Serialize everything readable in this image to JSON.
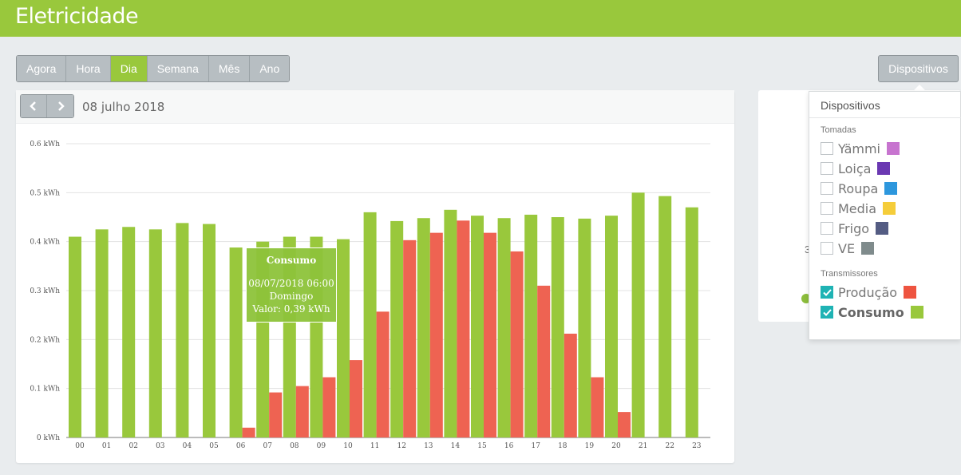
{
  "header": {
    "title": "Eletricidade"
  },
  "tabs": [
    {
      "label": "Agora",
      "active": false
    },
    {
      "label": "Hora",
      "active": false
    },
    {
      "label": "Dia",
      "active": true
    },
    {
      "label": "Semana",
      "active": false
    },
    {
      "label": "Mês",
      "active": false
    },
    {
      "label": "Ano",
      "active": false
    }
  ],
  "devices_button": {
    "label": "Dispositivos"
  },
  "panel": {
    "date": "08 julho 2018",
    "prev_icon": "chevron-left-icon",
    "next_icon": "chevron-right-icon"
  },
  "colors": {
    "accent": "#99c83c",
    "consumo": "#99c83c",
    "producao": "#ee6352",
    "checkbox": "#1fb3b4"
  },
  "chart_data": {
    "type": "bar",
    "categories": [
      "00",
      "01",
      "02",
      "03",
      "04",
      "05",
      "06",
      "07",
      "08",
      "09",
      "10",
      "11",
      "12",
      "13",
      "14",
      "15",
      "16",
      "17",
      "18",
      "19",
      "20",
      "21",
      "22",
      "23"
    ],
    "series": [
      {
        "name": "Consumo",
        "color": "#99c83c",
        "values": [
          0.41,
          0.425,
          0.43,
          0.425,
          0.438,
          0.436,
          0.388,
          0.4,
          0.41,
          0.41,
          0.405,
          0.46,
          0.442,
          0.448,
          0.465,
          0.453,
          0.448,
          0.455,
          0.45,
          0.447,
          0.453,
          0.5,
          0.493,
          0.47
        ]
      },
      {
        "name": "Produção",
        "color": "#ee6352",
        "values": [
          0,
          0,
          0,
          0,
          0,
          0,
          0.02,
          0.092,
          0.105,
          0.123,
          0.158,
          0.257,
          0.403,
          0.418,
          0.443,
          0.418,
          0.38,
          0.31,
          0.212,
          0.123,
          0.052,
          0,
          0,
          0
        ]
      }
    ],
    "yticks": [
      "0 kWh",
      "0.1 kWh",
      "0.2 kWh",
      "0.3 kWh",
      "0.4 kWh",
      "0.5 kWh",
      "0.6 kWh"
    ],
    "ylim": [
      0,
      0.6
    ],
    "grid": true,
    "tooltip": {
      "title": "Consumo",
      "date": "08/07/2018 06:00",
      "day": "Domingo",
      "value": "Valor: 0,39 kWh"
    }
  },
  "side": {
    "glimpse": "3"
  },
  "dropdown": {
    "title": "Dispositivos",
    "groups": [
      {
        "label": "Tomadas",
        "items": [
          {
            "label": "Yämmi",
            "color": "#c774cf",
            "checked": false
          },
          {
            "label": "Loiça",
            "color": "#6a38b2",
            "checked": false
          },
          {
            "label": "Roupa",
            "color": "#2d97dd",
            "checked": false
          },
          {
            "label": "Media",
            "color": "#f5cd3a",
            "checked": false
          },
          {
            "label": "Frigo",
            "color": "#545c83",
            "checked": false
          },
          {
            "label": "VE",
            "color": "#7f8b8c",
            "checked": false
          }
        ]
      },
      {
        "label": "Transmissores",
        "items": [
          {
            "label": "Produção",
            "color": "#ee5440",
            "checked": true
          },
          {
            "label": "Consumo",
            "color": "#99c83c",
            "checked": true
          }
        ]
      }
    ]
  }
}
